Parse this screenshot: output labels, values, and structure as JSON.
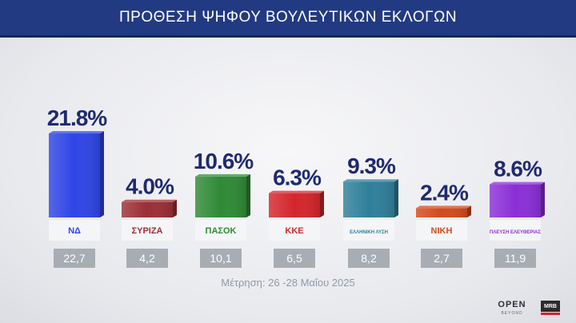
{
  "header": {
    "title": "ΠΡΟΘΕΣΗ ΨΗΦΟΥ ΒΟΥΛΕΥΤΙΚΩΝ ΕΚΛΟΓΩΝ"
  },
  "footer": {
    "date_note": "Μέτρηση: 26 -28 Μαΐου 2025"
  },
  "brand": {
    "channel": "OPEN",
    "channel_sub": "BEYOND",
    "pollster": "MRB"
  },
  "colors": {
    "header_bg": "#223a82",
    "value_text": "#1f2a6e",
    "prev_box_bg": "#a8adb4"
  },
  "chart_data": {
    "type": "bar",
    "title": "ΠΡΟΘΕΣΗ ΨΗΦΟΥ ΒΟΥΛΕΥΤΙΚΩΝ ΕΚΛΟΓΩΝ",
    "categories": [
      "ΝΔ",
      "ΣΥΡΙΖΑ",
      "ΠΑΣΟΚ",
      "ΚΚΕ",
      "ΕΛΛΗΝΙΚΗ ΛΥΣΗ",
      "ΝΙΚΗ",
      "ΠΛΕΥΣΗ ΕΛΕΥΘΕΡΙΑΣ"
    ],
    "series": [
      {
        "values": [
          21.8,
          4.0,
          10.6,
          6.3,
          9.3,
          2.4,
          8.6
        ]
      },
      {
        "values": [
          22.7,
          4.2,
          10.1,
          6.5,
          8.2,
          2.7,
          11.9
        ]
      }
    ],
    "value_labels": [
      "21.8%",
      "4.0%",
      "10.6%",
      "6.3%",
      "9.3%",
      "2.4%",
      "8.6%"
    ],
    "previous_labels": [
      "22,7",
      "4,2",
      "10,1",
      "6,5",
      "8,2",
      "2,7",
      "11,9"
    ],
    "bar_colors": [
      "#2f45e6",
      "#9b2f36",
      "#2f8a36",
      "#d3262c",
      "#2f7f9a",
      "#d24a1e",
      "#8a2fd6"
    ],
    "logo_texts": [
      "ΝΔ",
      "ΣΥΡΙΖΑ",
      "ΠΑΣΟΚ",
      "ΚΚΕ",
      "ΕΛΛΗΝΙΚΗ ΛΥΣΗ",
      "ΝΙΚΗ",
      "ΠΛΕΥΣΗ ΕΛΕΥΘΕΡΙΑΣ"
    ],
    "ylim": [
      0,
      22
    ],
    "grid": false,
    "xlabel": "",
    "ylabel": ""
  }
}
